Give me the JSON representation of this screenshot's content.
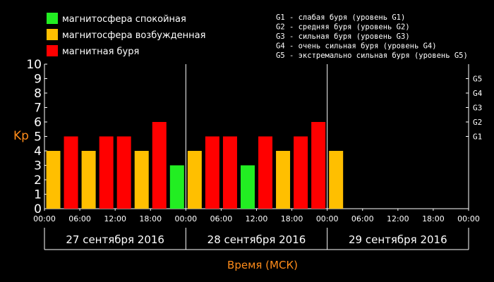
{
  "legend": [
    {
      "label": "магнитосфера спокойная",
      "color": "#22ee22"
    },
    {
      "label": "магнитосфера возбужденная",
      "color": "#ffbf00"
    },
    {
      "label": "магнитная буря",
      "color": "#ff0000"
    }
  ],
  "g_legend": [
    "G1 - слабая буря (уровень G1)",
    "G2 - средняя буря (уровень G2)",
    "G3 - сильная буря (уровень G3)",
    "G4 - очень сильная буря (уровень G4)",
    "G5 - экстремально сильная буря (уровень G5)"
  ],
  "chart_data": {
    "type": "bar",
    "ylabel": "Kp",
    "xlabel": "Время (МСК)",
    "ylim": [
      0,
      10
    ],
    "y_ticks": [
      "0",
      "1",
      "2",
      "3",
      "4",
      "5",
      "6",
      "7",
      "8",
      "9",
      "10"
    ],
    "g_ticks": [
      {
        "label": "G1",
        "kp": 5
      },
      {
        "label": "G2",
        "kp": 6
      },
      {
        "label": "G3",
        "kp": 7
      },
      {
        "label": "G4",
        "kp": 8
      },
      {
        "label": "G5",
        "kp": 9
      }
    ],
    "x_tick_labels": [
      "00:00",
      "06:00",
      "12:00",
      "18:00",
      "00:00",
      "06:00",
      "12:00",
      "18:00",
      "00:00",
      "06:00",
      "12:00",
      "18:00",
      "00:00"
    ],
    "days": [
      "27 сентября 2016",
      "28 сентября 2016",
      "29 сентября 2016"
    ],
    "intervals_per_day": 8,
    "values": [
      4,
      5,
      4,
      5,
      5,
      4,
      6,
      3,
      4,
      5,
      5,
      3,
      5,
      4,
      5,
      6,
      4
    ],
    "level_colors": {
      "calm": "#22ee22",
      "excited": "#ffbf00",
      "storm": "#ff0000"
    },
    "grid": false,
    "legend_position": "top-left"
  }
}
